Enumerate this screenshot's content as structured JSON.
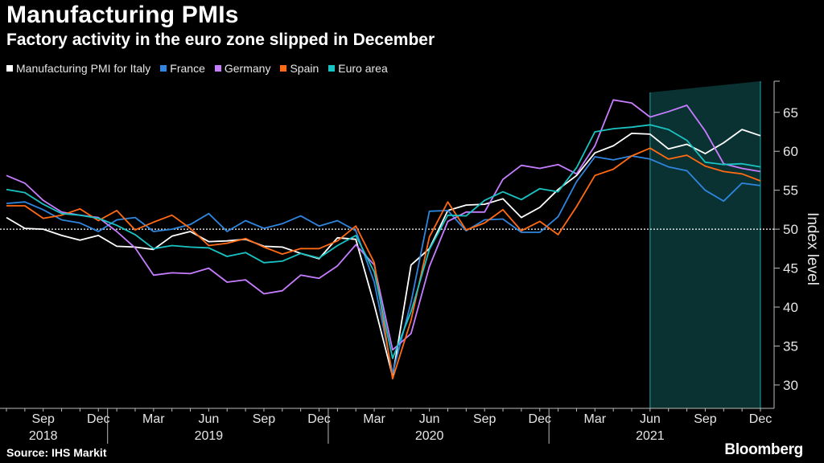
{
  "chart_data": {
    "type": "line",
    "title": "Manufacturing PMIs",
    "subtitle": "Factory activity in the euro zone slipped in December",
    "ylabel": "Index level",
    "ylim": [
      27,
      69
    ],
    "yticks": [
      30,
      35,
      40,
      45,
      50,
      55,
      60,
      65
    ],
    "reference_line": 50,
    "x_start": "2018-07",
    "x_end": "2021-12",
    "x_ticks": [
      {
        "x": "2018-09",
        "label": "Sep"
      },
      {
        "x": "2018-12",
        "label": "Dec"
      },
      {
        "x": "2019-03",
        "label": "Mar"
      },
      {
        "x": "2019-06",
        "label": "Jun"
      },
      {
        "x": "2019-09",
        "label": "Sep"
      },
      {
        "x": "2019-12",
        "label": "Dec"
      },
      {
        "x": "2020-03",
        "label": "Mar"
      },
      {
        "x": "2020-06",
        "label": "Jun"
      },
      {
        "x": "2020-09",
        "label": "Sep"
      },
      {
        "x": "2020-12",
        "label": "Dec"
      },
      {
        "x": "2021-03",
        "label": "Mar"
      },
      {
        "x": "2021-06",
        "label": "Jun"
      },
      {
        "x": "2021-09",
        "label": "Sep"
      },
      {
        "x": "2021-12",
        "label": "Dec"
      }
    ],
    "year_labels": [
      {
        "x": "2018-09",
        "label": "2018"
      },
      {
        "x": "2019-06",
        "label": "2019"
      },
      {
        "x": "2020-06",
        "label": "2020"
      },
      {
        "x": "2021-06",
        "label": "2021"
      }
    ],
    "shaded_region": {
      "from": "2021-06",
      "to": "2021-12"
    },
    "series": [
      {
        "name": "Manufacturing PMI for Italy",
        "color": "#ffffff",
        "values": [
          51.5,
          50.1,
          50.0,
          49.2,
          48.6,
          49.2,
          47.8,
          47.7,
          47.4,
          49.1,
          49.7,
          48.4,
          48.5,
          48.7,
          47.8,
          47.7,
          46.9,
          46.2,
          48.9,
          48.7,
          40.3,
          31.1,
          45.4,
          47.5,
          52.4,
          53.1,
          53.2,
          53.9,
          51.5,
          52.8,
          55.1,
          56.9,
          59.8,
          60.7,
          62.3,
          62.2,
          60.3,
          60.9,
          59.7,
          61.1,
          62.8,
          62.0
        ]
      },
      {
        "name": "France",
        "color": "#2e86de",
        "values": [
          53.3,
          53.5,
          52.5,
          51.2,
          50.8,
          49.7,
          51.2,
          51.5,
          49.7,
          50.0,
          50.6,
          52.0,
          49.7,
          51.1,
          50.1,
          50.7,
          51.7,
          50.4,
          51.1,
          49.8,
          43.2,
          31.5,
          40.6,
          52.3,
          52.4,
          49.8,
          51.2,
          51.3,
          49.6,
          49.6,
          51.6,
          56.1,
          59.3,
          58.9,
          59.4,
          59.0,
          58.0,
          57.5,
          55.0,
          53.6,
          55.9,
          55.6
        ]
      },
      {
        "name": "Germany",
        "color": "#c77dff",
        "values": [
          56.9,
          55.9,
          53.7,
          52.2,
          51.8,
          51.5,
          49.7,
          47.6,
          44.1,
          44.4,
          44.3,
          45.0,
          43.2,
          43.5,
          41.7,
          42.1,
          44.1,
          43.7,
          45.3,
          48.0,
          45.4,
          34.5,
          36.6,
          45.2,
          51.0,
          52.2,
          52.2,
          56.4,
          58.2,
          57.8,
          58.3,
          57.1,
          60.7,
          66.6,
          66.2,
          64.4,
          65.1,
          65.9,
          62.6,
          58.4,
          57.8,
          57.4
        ]
      },
      {
        "name": "Spain",
        "color": "#ff6a13",
        "values": [
          53.0,
          53.0,
          51.4,
          51.8,
          52.6,
          51.1,
          52.4,
          49.9,
          50.9,
          51.8,
          50.1,
          47.9,
          48.2,
          48.8,
          47.7,
          46.8,
          47.5,
          47.5,
          48.5,
          50.4,
          45.7,
          30.8,
          38.3,
          49.0,
          53.5,
          49.9,
          50.8,
          52.5,
          49.8,
          51.0,
          49.3,
          52.9,
          56.9,
          57.7,
          59.4,
          60.4,
          59.0,
          59.5,
          58.1,
          57.4,
          57.1,
          56.2
        ]
      },
      {
        "name": "Euro area",
        "color": "#19c3c3",
        "values": [
          55.1,
          54.7,
          53.2,
          52.0,
          51.8,
          51.4,
          50.5,
          49.3,
          47.5,
          47.9,
          47.7,
          47.6,
          46.5,
          47.0,
          45.7,
          45.9,
          46.9,
          46.3,
          47.9,
          49.2,
          44.5,
          33.4,
          39.4,
          47.4,
          51.8,
          51.7,
          53.7,
          54.8,
          53.8,
          55.2,
          54.8,
          57.9,
          62.5,
          62.9,
          63.1,
          63.4,
          62.8,
          61.4,
          58.6,
          58.3,
          58.4,
          58.0
        ]
      }
    ]
  },
  "footer": {
    "source": "Source: IHS Markit",
    "brand": "Bloomberg"
  }
}
